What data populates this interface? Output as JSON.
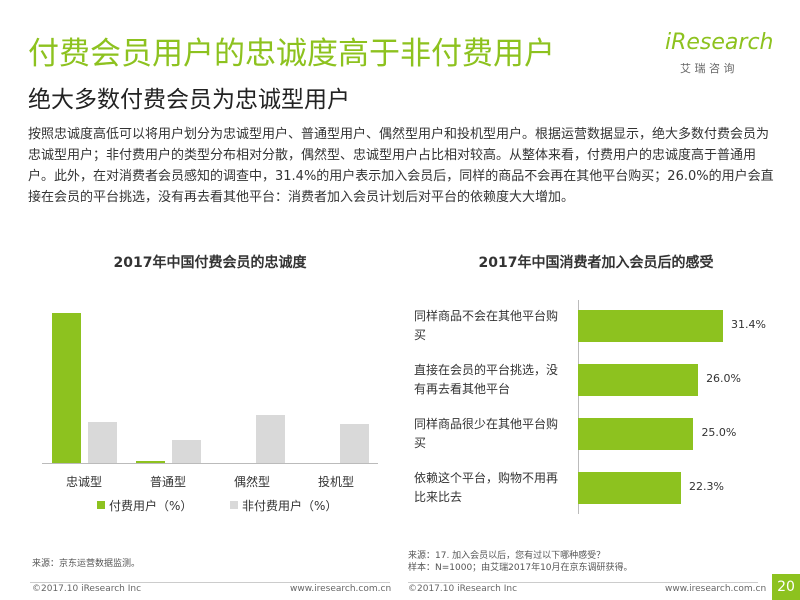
{
  "header": {
    "title": "付费会员用户的忠诚度高于非付费用户",
    "subtitle": "绝大多数付费会员为忠诚型用户",
    "body": "按照忠诚度高低可以将用户划分为忠诚型用户、普通型用户、偶然型用户和投机型用户。根据运营数据显示，绝大多数付费会员为忠诚型用户；非付费用户的类型分布相对分散，偶然型、忠诚型用户占比相对较高。从整体来看，付费用户的忠诚度高于普通用户。此外，在对消费者会员感知的调查中，31.4%的用户表示加入会员后，同样的商品不会再在其他平台购买；26.0%的用户会直接在会员的平台挑选，没有再去看其他平台：消费者加入会员计划后对平台的依赖度大大增加。",
    "logo": "iResearch",
    "logo_sub": "艾 瑞 咨 询"
  },
  "chart_data": [
    {
      "type": "bar",
      "title": "2017年中国付费会员的忠诚度",
      "categories": [
        "忠诚型",
        "普通型",
        "偶然型",
        "投机型"
      ],
      "series": [
        {
          "name": "付费用户（%）",
          "color": "#8dc21f",
          "values": [
            67.5,
            1,
            0,
            0
          ]
        },
        {
          "name": "非付费用户（%）",
          "color": "#d9d9d9",
          "values": [
            18.5,
            10.4,
            21.6,
            17.6
          ]
        }
      ]
    },
    {
      "type": "hbar",
      "title": "2017年中国消费者加入会员后的感受",
      "categories": [
        "同样商品不会在其他平台购买",
        "直接在会员的平台挑选，没有再去看其他平台",
        "同样商品很少在其他平台购买",
        "依赖这个平台，购物不用再比来比去"
      ],
      "values": [
        31.4,
        26.0,
        25.0,
        22.3
      ],
      "value_labels": [
        "31.4%",
        "26.0%",
        "25.0%",
        "22.3%"
      ],
      "color": "#8dc21f"
    }
  ],
  "footer": {
    "source_left": "来源：京东运营数据监测。",
    "source_right_1": "来源：17. 加入会员以后，您有过以下哪种感受？",
    "source_right_2": "样本：N=1000；由艾瑞2017年10月在京东调研获得。",
    "copyright_left": "©2017.10 iResearch Inc",
    "url_left": "www.iresearch.com.cn",
    "copyright_right": "©2017.10 iResearch Inc",
    "url_right": "www.iresearch.com.cn",
    "page": "20"
  }
}
